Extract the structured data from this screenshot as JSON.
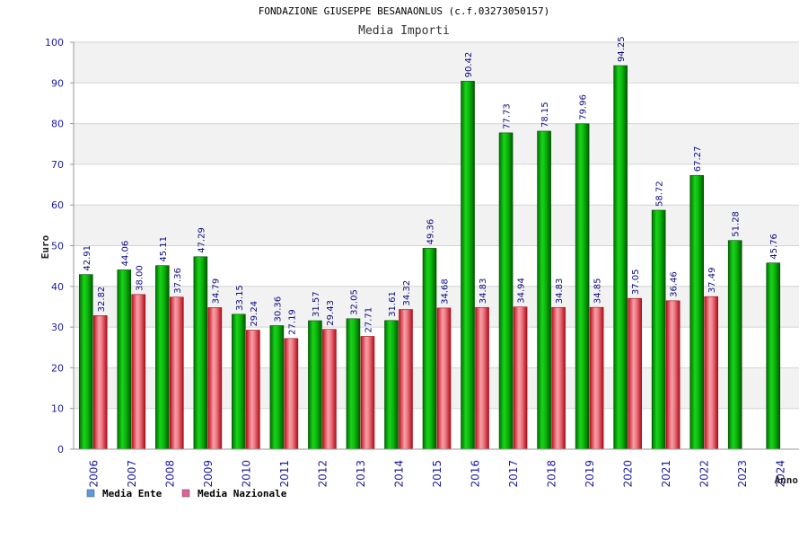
{
  "chart_data": {
    "type": "bar",
    "title": "FONDAZIONE GIUSEPPE BESANAONLUS (c.f.03273050157)",
    "subtitle": "Media Importi",
    "xlabel": "Anno",
    "ylabel": "Euro",
    "ylim": [
      0,
      100
    ],
    "yticks": [
      "0",
      "10",
      "20",
      "30",
      "40",
      "50",
      "60",
      "70",
      "80",
      "90",
      "100"
    ],
    "grid": true,
    "legend_position": "bottom-left",
    "categories": [
      "2006",
      "2007",
      "2008",
      "2009",
      "2010",
      "2011",
      "2012",
      "2013",
      "2014",
      "2015",
      "2016",
      "2017",
      "2018",
      "2019",
      "2020",
      "2021",
      "2022",
      "2023",
      "2024"
    ],
    "series": [
      {
        "name": "Media Ente",
        "color": "#00a000",
        "legend_color": "#5b9be6",
        "values": [
          42.91,
          44.06,
          45.11,
          47.29,
          33.15,
          30.36,
          31.57,
          32.05,
          31.61,
          49.36,
          90.42,
          77.73,
          78.15,
          79.96,
          94.25,
          58.72,
          67.27,
          51.28,
          45.76
        ],
        "labels": [
          "42.91",
          "44.06",
          "45.11",
          "47.29",
          "33.15",
          "30.36",
          "31.57",
          "32.05",
          "31.61",
          "49.36",
          "90.42",
          "77.73",
          "78.15",
          "79.96",
          "94.25",
          "58.72",
          "67.27",
          "51.28",
          "45.76"
        ]
      },
      {
        "name": "Media Nazionale",
        "color": "#e02030",
        "legend_color": "#e0609a",
        "values": [
          32.82,
          38.0,
          37.36,
          34.79,
          29.24,
          27.19,
          29.43,
          27.71,
          34.32,
          34.68,
          34.83,
          34.94,
          34.83,
          34.85,
          37.05,
          36.46,
          37.49,
          null,
          null
        ],
        "labels": [
          "32.82",
          "38.00",
          "37.36",
          "34.79",
          "29.24",
          "27.19",
          "29.43",
          "27.71",
          "34.32",
          "34.68",
          "34.83",
          "34.94",
          "34.83",
          "34.85",
          "37.05",
          "36.46",
          "37.49",
          null,
          null
        ]
      }
    ]
  }
}
